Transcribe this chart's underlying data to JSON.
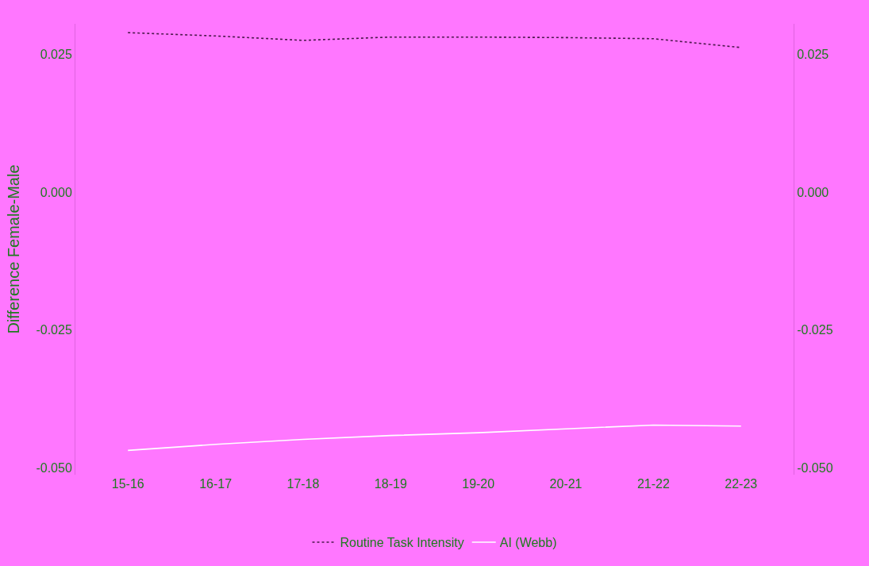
{
  "chart_data": {
    "type": "line",
    "ylabel": "Difference Female-Male",
    "categories": [
      "15-16",
      "16-17",
      "17-18",
      "18-19",
      "19-20",
      "20-21",
      "21-22",
      "22-23"
    ],
    "series": [
      {
        "name": "Routine Task Intensity",
        "color": "#4b1a4b",
        "line_style": "dotted",
        "values": [
          0.0289,
          0.0283,
          0.0275,
          0.0281,
          0.0281,
          0.028,
          0.0278,
          0.0262
        ]
      },
      {
        "name": "AI (Webb)",
        "color": "#ffffff",
        "line_style": "solid",
        "values": [
          -0.0468,
          -0.0457,
          -0.0448,
          -0.0441,
          -0.0436,
          -0.0429,
          -0.0422,
          -0.0424
        ]
      }
    ],
    "ylim": [
      -0.0512,
      0.0305
    ],
    "yticks": [
      {
        "value": -0.05,
        "label": "-0.050"
      },
      {
        "value": -0.025,
        "label": "-0.025"
      },
      {
        "value": 0,
        "label": "0.000"
      },
      {
        "value": 0.025,
        "label": "0.025"
      }
    ],
    "y2lim": [
      -0.0512,
      0.0305
    ],
    "y2ticks": [
      {
        "value": -0.05,
        "label": "-0.050"
      },
      {
        "value": -0.025,
        "label": "-0.025"
      },
      {
        "value": 0,
        "label": "0.000"
      },
      {
        "value": 0.025,
        "label": "0.025"
      }
    ],
    "grid": false,
    "legend": "bottom",
    "marker": "none"
  }
}
